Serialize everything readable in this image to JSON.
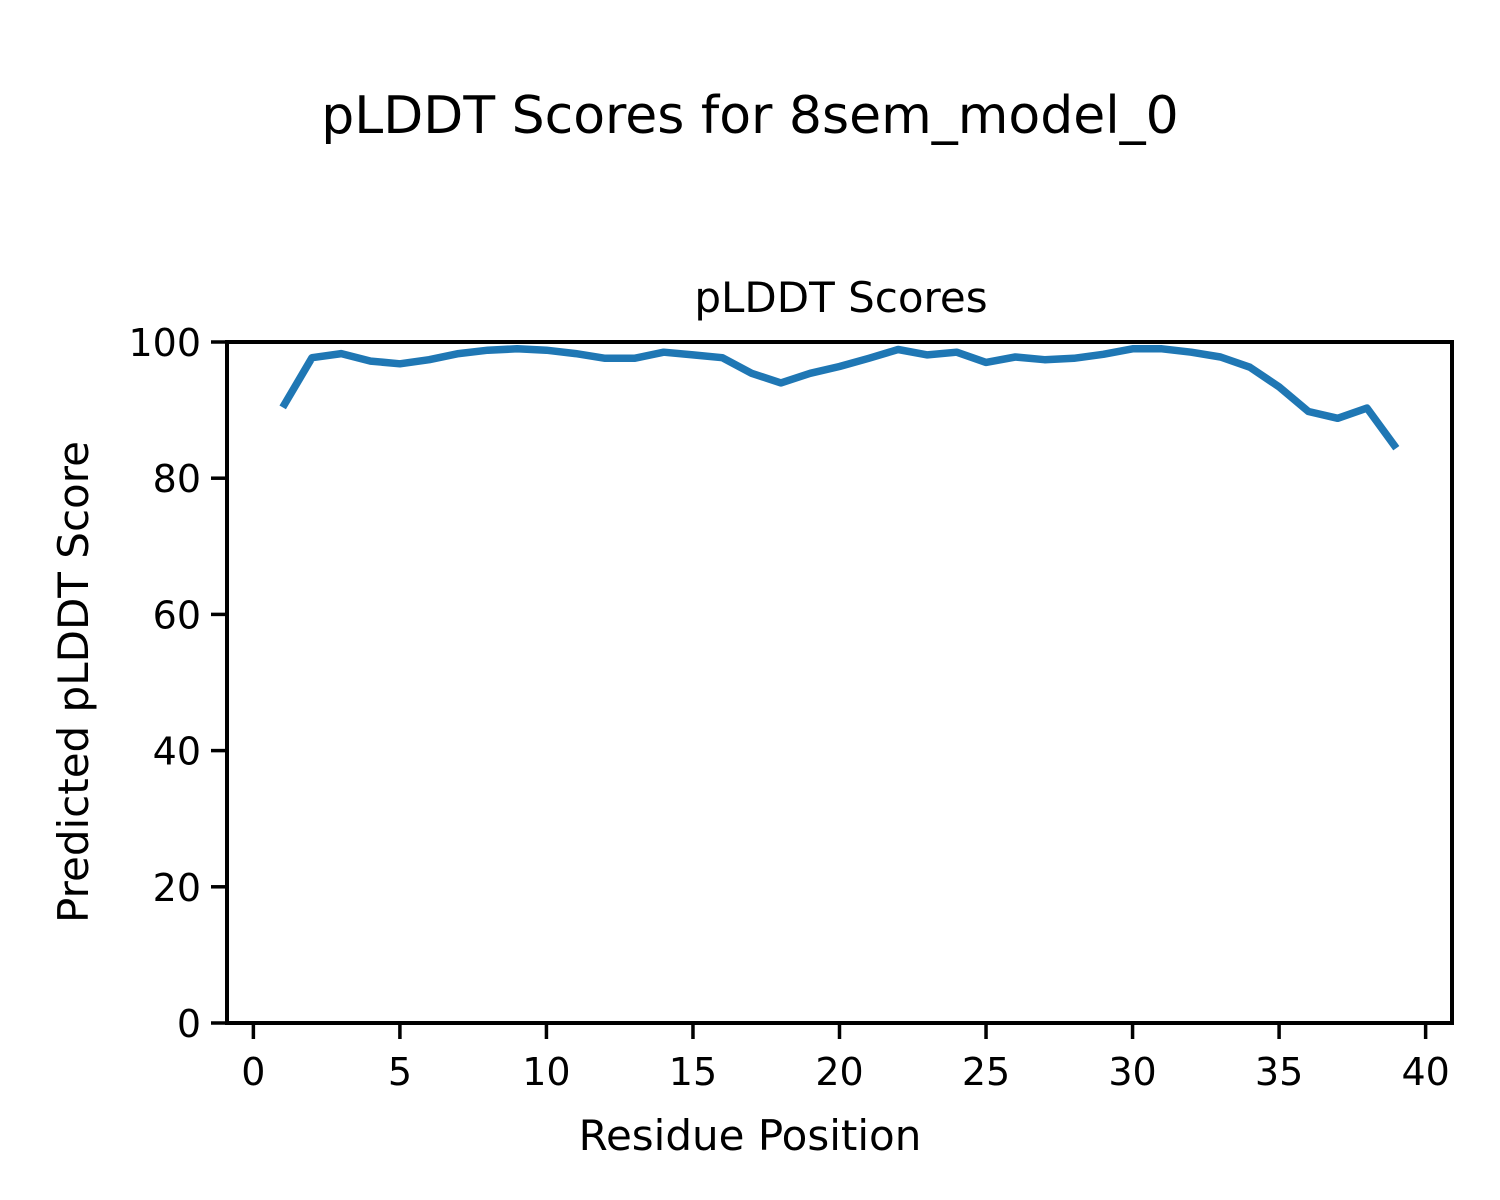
{
  "figure": {
    "suptitle": "pLDDT Scores for 8sem_model_0",
    "background_color": "#ffffff",
    "text_color": "#000000"
  },
  "chart_data": {
    "type": "line",
    "title": "pLDDT Scores",
    "xlabel": "Residue Position",
    "ylabel": "Predicted pLDDT Score",
    "x": [
      1,
      2,
      3,
      4,
      5,
      6,
      7,
      8,
      9,
      10,
      11,
      12,
      13,
      14,
      15,
      16,
      17,
      18,
      19,
      20,
      21,
      22,
      23,
      24,
      25,
      26,
      27,
      28,
      29,
      30,
      31,
      32,
      33,
      34,
      35,
      36,
      37,
      38,
      39
    ],
    "y": [
      90.4,
      97.7,
      98.3,
      97.2,
      96.8,
      97.4,
      98.3,
      98.8,
      99.0,
      98.8,
      98.3,
      97.6,
      97.6,
      98.5,
      98.1,
      97.7,
      95.4,
      94.0,
      95.4,
      96.4,
      97.6,
      98.9,
      98.1,
      98.5,
      97.0,
      97.8,
      97.4,
      97.6,
      98.2,
      99.0,
      99.0,
      98.5,
      97.8,
      96.3,
      93.4,
      89.8,
      88.8,
      90.3,
      84.4
    ],
    "xlim": [
      -0.9,
      40.9
    ],
    "ylim": [
      0,
      100
    ],
    "xticks": [
      0,
      5,
      10,
      15,
      20,
      25,
      30,
      35,
      40
    ],
    "yticks": [
      0,
      20,
      40,
      60,
      80,
      100
    ],
    "line_color": "#1f77b4",
    "grid": false,
    "legend": null
  }
}
